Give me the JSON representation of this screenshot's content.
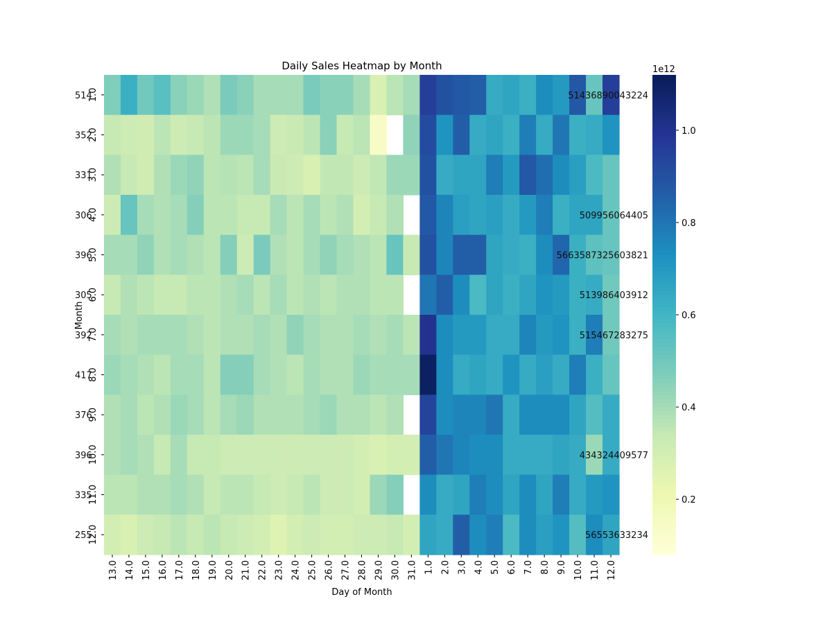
{
  "chart_data": {
    "type": "heatmap",
    "title": "Daily Sales Heatmap by Month",
    "xlabel": "Day of Month",
    "ylabel": "Month",
    "x_categories": [
      "13.0",
      "14.0",
      "15.0",
      "16.0",
      "17.0",
      "18.0",
      "19.0",
      "20.0",
      "21.0",
      "22.0",
      "23.0",
      "24.0",
      "25.0",
      "26.0",
      "27.0",
      "28.0",
      "29.0",
      "30.0",
      "31.0",
      "1.0",
      "2.0",
      "3.0",
      "4.0",
      "5.0",
      "6.0",
      "7.0",
      "8.0",
      "9.0",
      "10.0",
      "11.0",
      "12.0"
    ],
    "y_categories": [
      "1.0",
      "2.0",
      "3.0",
      "4.0",
      "5.0",
      "6.0",
      "7.0",
      "8.0",
      "9.0",
      "10.0",
      "11.0",
      "12.0"
    ],
    "colorbar": {
      "colormap": "YlGnBu",
      "range": [
        80000000000,
        1120000000000
      ],
      "ticks": [
        0.2,
        0.4,
        0.6,
        0.8,
        1.0
      ],
      "tick_labels": [
        "0.2",
        "0.4",
        "0.6",
        "0.8",
        "1.0"
      ],
      "scale_label": "1e12"
    },
    "values_scaled": [
      [
        0.47,
        0.62,
        0.5,
        0.55,
        0.45,
        0.42,
        0.38,
        0.48,
        0.45,
        0.4,
        0.4,
        0.4,
        0.48,
        0.45,
        0.45,
        0.4,
        0.28,
        0.36,
        0.4,
        0.96,
        0.9,
        0.88,
        0.86,
        0.64,
        0.66,
        0.62,
        0.74,
        0.7,
        0.88,
        0.52,
        0.96
      ],
      [
        0.34,
        0.32,
        0.31,
        0.36,
        0.32,
        0.34,
        0.36,
        0.42,
        0.42,
        0.4,
        0.32,
        0.33,
        0.36,
        0.45,
        0.34,
        0.36,
        0.14,
        null,
        0.44,
        0.92,
        0.72,
        0.86,
        0.64,
        0.66,
        0.62,
        0.78,
        0.64,
        0.8,
        0.62,
        0.64,
        0.72
      ],
      [
        0.38,
        0.34,
        0.31,
        0.38,
        0.42,
        0.44,
        0.36,
        0.37,
        0.36,
        0.4,
        0.33,
        0.32,
        0.28,
        0.35,
        0.35,
        0.32,
        0.35,
        0.42,
        0.42,
        0.9,
        0.64,
        0.66,
        0.66,
        0.78,
        0.7,
        0.88,
        0.82,
        0.74,
        0.68,
        0.58,
        0.52
      ],
      [
        0.32,
        0.52,
        0.4,
        0.38,
        0.4,
        0.46,
        0.36,
        0.36,
        0.34,
        0.34,
        0.4,
        0.36,
        0.4,
        0.36,
        0.38,
        0.3,
        0.34,
        0.38,
        null,
        0.88,
        0.76,
        0.68,
        0.66,
        0.68,
        0.64,
        0.7,
        0.78,
        0.62,
        0.66,
        0.66,
        0.52
      ],
      [
        0.4,
        0.4,
        0.44,
        0.38,
        0.4,
        0.38,
        0.36,
        0.46,
        0.32,
        0.48,
        0.38,
        0.36,
        0.4,
        0.44,
        0.4,
        0.38,
        0.36,
        0.52,
        0.34,
        0.9,
        0.76,
        0.86,
        0.86,
        0.66,
        0.64,
        0.62,
        0.74,
        0.84,
        0.62,
        0.54,
        0.52
      ],
      [
        0.34,
        0.38,
        0.36,
        0.34,
        0.34,
        0.36,
        0.36,
        0.38,
        0.4,
        0.36,
        0.4,
        0.36,
        0.38,
        0.36,
        0.38,
        0.38,
        0.36,
        0.36,
        null,
        0.8,
        0.86,
        0.74,
        0.58,
        0.66,
        0.62,
        0.66,
        0.72,
        0.7,
        0.62,
        0.64,
        0.5
      ],
      [
        0.4,
        0.38,
        0.4,
        0.4,
        0.4,
        0.38,
        0.36,
        0.38,
        0.38,
        0.4,
        0.38,
        0.44,
        0.4,
        0.38,
        0.38,
        0.4,
        0.38,
        0.4,
        0.36,
        1.0,
        0.74,
        0.7,
        0.7,
        0.64,
        0.64,
        0.76,
        0.7,
        0.72,
        0.62,
        0.78,
        0.5
      ],
      [
        0.42,
        0.4,
        0.38,
        0.36,
        0.4,
        0.4,
        0.36,
        0.46,
        0.46,
        0.4,
        0.38,
        0.36,
        0.4,
        0.38,
        0.38,
        0.42,
        0.4,
        0.4,
        0.4,
        1.1,
        0.74,
        0.64,
        0.66,
        0.64,
        0.72,
        0.64,
        0.68,
        0.64,
        0.78,
        0.62,
        0.52
      ],
      [
        0.38,
        0.4,
        0.36,
        0.38,
        0.42,
        0.4,
        0.36,
        0.4,
        0.42,
        0.38,
        0.38,
        0.38,
        0.4,
        0.42,
        0.38,
        0.38,
        0.36,
        0.38,
        null,
        0.94,
        0.74,
        0.76,
        0.76,
        0.8,
        0.64,
        0.74,
        0.74,
        0.74,
        0.66,
        0.56,
        0.64
      ],
      [
        0.38,
        0.4,
        0.38,
        0.34,
        0.4,
        0.34,
        0.34,
        0.32,
        0.32,
        0.32,
        0.32,
        0.32,
        0.32,
        0.32,
        0.32,
        0.3,
        0.28,
        0.3,
        0.3,
        0.86,
        0.8,
        0.76,
        0.74,
        0.74,
        0.64,
        0.64,
        0.64,
        0.66,
        0.64,
        0.42,
        0.64
      ],
      [
        0.36,
        0.36,
        0.38,
        0.38,
        0.4,
        0.38,
        0.34,
        0.36,
        0.36,
        0.34,
        0.32,
        0.34,
        0.36,
        0.32,
        0.32,
        0.3,
        0.42,
        0.46,
        null,
        0.74,
        0.64,
        0.66,
        0.78,
        0.74,
        0.66,
        0.74,
        0.66,
        0.78,
        0.64,
        0.7,
        0.72
      ],
      [
        0.3,
        0.28,
        0.32,
        0.34,
        0.36,
        0.34,
        0.36,
        0.34,
        0.32,
        0.3,
        0.26,
        0.3,
        0.32,
        0.3,
        0.3,
        0.32,
        0.32,
        0.34,
        0.3,
        0.66,
        0.64,
        0.86,
        0.74,
        0.78,
        0.58,
        0.74,
        0.68,
        0.72,
        0.56,
        0.74,
        0.66
      ]
    ],
    "row_labels_leading": [
      "514",
      "352",
      "331",
      "306",
      "396",
      "305",
      "392",
      "417",
      "376",
      "396",
      "335",
      "255"
    ],
    "annotations_right": [
      {
        "row": 0,
        "text": "51436890043224"
      },
      {
        "row": 3,
        "text": "509956064405"
      },
      {
        "row": 4,
        "text": "5663587325603821"
      },
      {
        "row": 5,
        "text": "513986403912"
      },
      {
        "row": 6,
        "text": "515467283275"
      },
      {
        "row": 9,
        "text": "434324409577"
      },
      {
        "row": 11,
        "text": "56553633234"
      }
    ]
  }
}
